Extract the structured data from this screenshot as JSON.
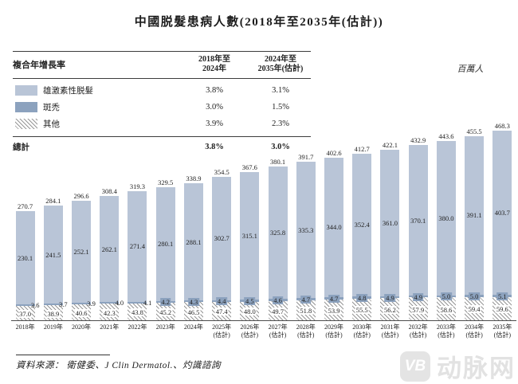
{
  "title": "中國脱髮患病人數(2018年至2035年(估計))",
  "unit_label": "百萬人",
  "cagr_table": {
    "header_label": "複合年增長率",
    "columns": [
      {
        "lines": [
          "2018年至",
          "2024年"
        ]
      },
      {
        "lines": [
          "2024年至",
          "2035年(估計)"
        ]
      }
    ],
    "rows": [
      {
        "label": "雄激素性脱髮",
        "swatch": "solid-light",
        "c1": "3.8%",
        "c2": "3.1%"
      },
      {
        "label": "斑禿",
        "swatch": "solid-dark",
        "c1": "3.0%",
        "c2": "1.5%"
      },
      {
        "label": "其他",
        "swatch": "hatched",
        "c1": "3.9%",
        "c2": "2.3%"
      }
    ],
    "total": {
      "label": "總計",
      "c1": "3.8%",
      "c2": "3.0%"
    }
  },
  "chart_data": {
    "type": "bar",
    "stacked": true,
    "title": "中國脱髮患病人數(2018年至2035年(估計))",
    "ylabel": "百萬人",
    "ylim": [
      0,
      480
    ],
    "grid": false,
    "categories": [
      [
        "2018年"
      ],
      [
        "2019年"
      ],
      [
        "2020年"
      ],
      [
        "2021年"
      ],
      [
        "2022年"
      ],
      [
        "2023年"
      ],
      [
        "2024年"
      ],
      [
        "2025年",
        "(估計)"
      ],
      [
        "2026年",
        "(估計)"
      ],
      [
        "2027年",
        "(估計)"
      ],
      [
        "2028年",
        "(估計)"
      ],
      [
        "2029年",
        "(估計)"
      ],
      [
        "2030年",
        "(估計)"
      ],
      [
        "2031年",
        "(估計)"
      ],
      [
        "2032年",
        "(估計)"
      ],
      [
        "2033年",
        "(估計)"
      ],
      [
        "2034年",
        "(估計)"
      ],
      [
        "2035年",
        "(估計)"
      ]
    ],
    "series": [
      {
        "name": "雄激素性脱髮",
        "style": "solid-light",
        "color": "#b9c5d7",
        "values": [
          230.1,
          241.5,
          252.1,
          262.1,
          271.4,
          280.1,
          288.1,
          302.7,
          315.1,
          325.8,
          335.3,
          344.0,
          352.4,
          361.0,
          370.1,
          380.0,
          391.1,
          403.7
        ]
      },
      {
        "name": "斑禿",
        "style": "solid-dark",
        "color": "#8ca2be",
        "values": [
          3.6,
          3.7,
          3.9,
          4.0,
          4.1,
          4.2,
          4.3,
          4.4,
          4.5,
          4.6,
          4.7,
          4.7,
          4.8,
          4.9,
          4.9,
          5.0,
          5.0,
          5.1
        ]
      },
      {
        "name": "其他",
        "style": "hatched",
        "color": "#969696",
        "values": [
          37.0,
          38.9,
          40.6,
          42.3,
          43.8,
          45.2,
          46.5,
          47.4,
          48.0,
          49.7,
          51.8,
          53.9,
          55.5,
          56.2,
          57.9,
          58.6,
          59.4,
          59.6
        ]
      }
    ],
    "totals": [
      270.7,
      284.1,
      296.6,
      308.4,
      319.3,
      329.5,
      338.9,
      354.5,
      367.6,
      380.1,
      391.7,
      402.6,
      412.7,
      422.1,
      432.9,
      443.6,
      455.5,
      468.3
    ]
  },
  "source_note": "資料來源： 衛健委、J Clin Dermatol.、灼識諮詢",
  "watermark": {
    "logo_text": "VB",
    "name": "动脉网"
  },
  "colors": {
    "bar_light": "#b9c5d7",
    "bar_dark": "#8ca2be",
    "hatch_line": "#969696",
    "axis": "#4d4d4d",
    "text": "#222222",
    "watermark": "#e2e2e2"
  }
}
